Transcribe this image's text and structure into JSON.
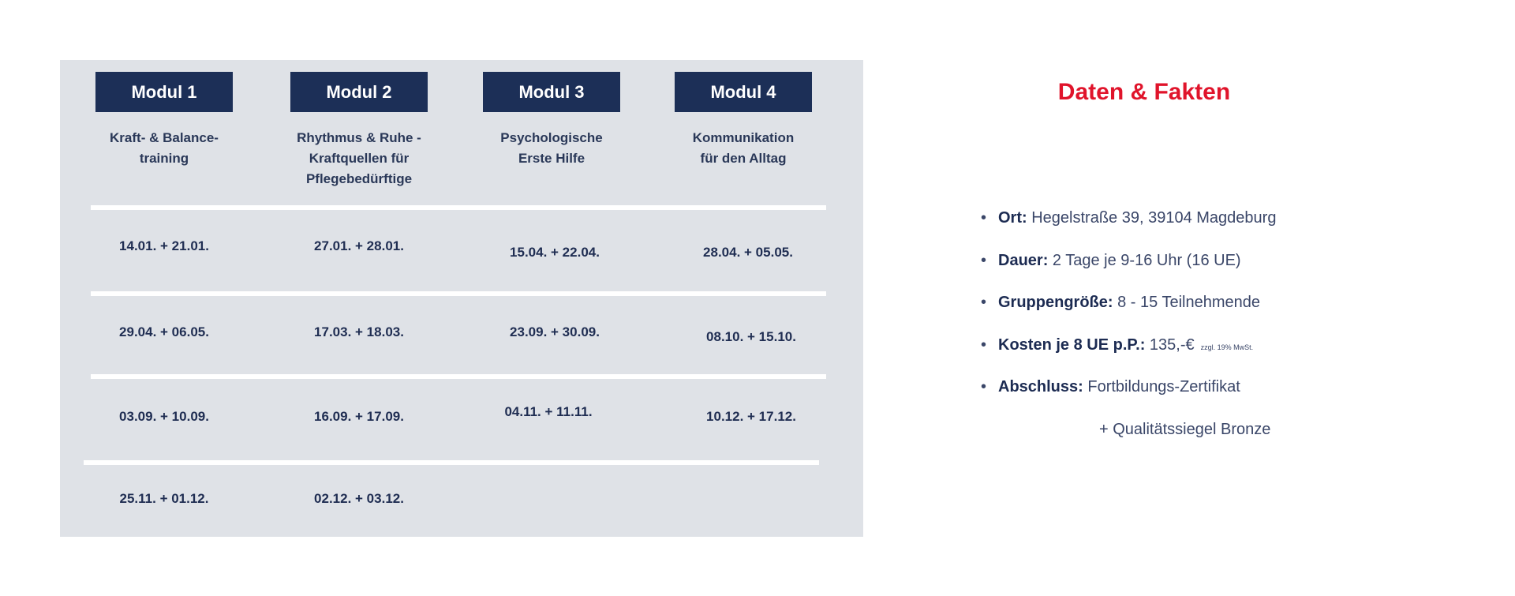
{
  "modules": [
    {
      "label": "Modul 1",
      "title_lines": [
        "Kraft- & Balance-",
        "training"
      ],
      "dates": [
        "14.01. + 21.01.",
        "29.04. + 06.05.",
        "03.09. + 10.09.",
        "25.11. + 01.12."
      ]
    },
    {
      "label": "Modul 2",
      "title_lines": [
        "Rhythmus & Ruhe -",
        "Kraftquellen für",
        "Pflegebedürftige"
      ],
      "dates": [
        "27.01. + 28.01.",
        "17.03. + 18.03.",
        "16.09. + 17.09.",
        "02.12. + 03.12."
      ]
    },
    {
      "label": "Modul 3",
      "title_lines": [
        "Psychologische",
        "Erste Hilfe"
      ],
      "dates": [
        "15.04. + 22.04.",
        "23.09. + 30.09.",
        "04.11. + 11.11."
      ]
    },
    {
      "label": "Modul 4",
      "title_lines": [
        "Kommunikation",
        "für den Alltag"
      ],
      "dates": [
        "28.04. + 05.05.",
        "08.10. + 15.10.",
        "10.12. + 17.12."
      ]
    }
  ],
  "facts": {
    "title": "Daten & Fakten",
    "items": [
      {
        "label": "Ort:",
        "value": "Hegelstraße 39, 39104 Magdeburg"
      },
      {
        "label": "Dauer:",
        "value": "2 Tage je 9-16 Uhr (16 UE)"
      },
      {
        "label": "Gruppengröße:",
        "value": "8 - 15 Teilnehmende"
      },
      {
        "label": "Kosten je 8 UE p.P.:",
        "value": "135,-€",
        "note": "zzgl. 19% MwSt."
      },
      {
        "label": "Abschluss:",
        "value": "Fortbildungs-Zertifikat"
      }
    ],
    "extra": "+ Qualitätssiegel Bronze"
  },
  "colors": {
    "navy": "#1c2f57",
    "panel": "#dfe2e7",
    "accent_red": "#e0142b"
  }
}
